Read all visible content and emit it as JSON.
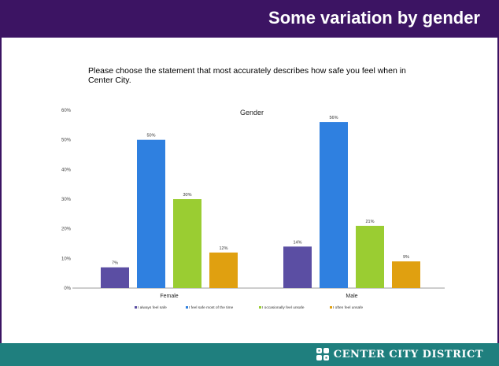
{
  "slide": {
    "title": "Some variation by gender",
    "question": "Please choose the statement that most accurately describes how safe you feel when in Center City.",
    "footer_logo_text": "CENTER CITY DISTRICT"
  },
  "colors": {
    "header": "#3c1463",
    "footer": "#1f7f7e"
  },
  "chart_data": {
    "type": "bar",
    "title": "Gender",
    "categories": [
      "Female",
      "Male"
    ],
    "ylim": [
      0,
      60
    ],
    "yticks": [
      "0%",
      "10%",
      "20%",
      "30%",
      "40%",
      "50%",
      "60%"
    ],
    "grid": false,
    "legend_position": "bottom",
    "series": [
      {
        "name": "I always feel safe",
        "color": "#5b4ea3",
        "values": [
          7,
          14
        ],
        "labels": [
          "7%",
          "14%"
        ]
      },
      {
        "name": "I feel safe most of the time",
        "color": "#2f80e0",
        "values": [
          50,
          56
        ],
        "labels": [
          "50%",
          "56%"
        ]
      },
      {
        "name": "I occasionally feel unsafe",
        "color": "#9acd32",
        "values": [
          30,
          21
        ],
        "labels": [
          "30%",
          "21%"
        ]
      },
      {
        "name": "I often feel unsafe",
        "color": "#e0a010",
        "values": [
          12,
          9
        ],
        "labels": [
          "12%",
          "9%"
        ]
      }
    ]
  }
}
